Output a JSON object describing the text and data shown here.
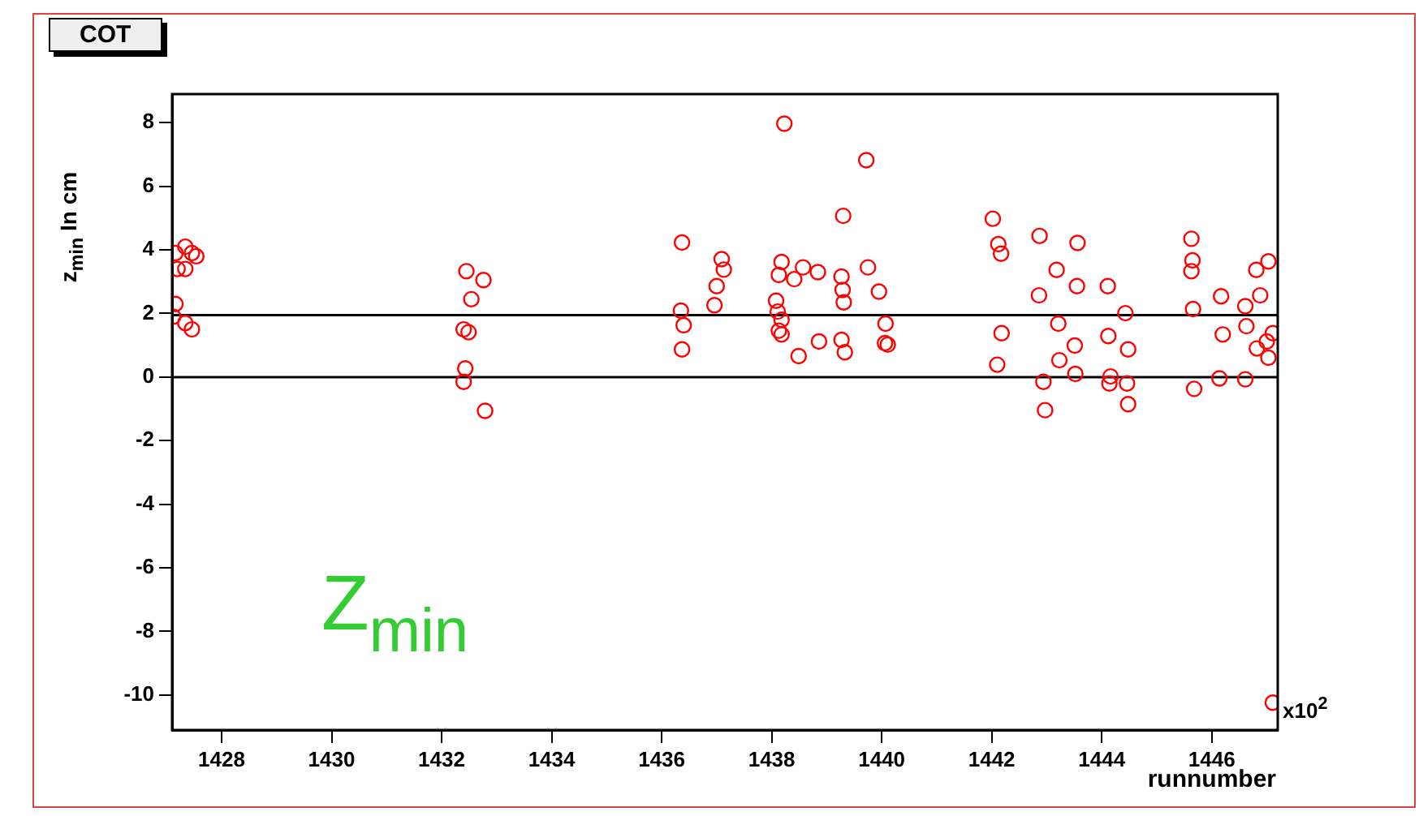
{
  "chart_data": {
    "type": "scatter",
    "title": "COT",
    "xlabel": "runnumber",
    "ylabel": "z$_{min}$ In cm",
    "annotations": [
      "Z$_{min}$",
      "x10$^{2}$"
    ],
    "xlim": [
      1427.1,
      1447.2
    ],
    "xticks": [
      1428,
      1430,
      1432,
      1434,
      1436,
      1438,
      1440,
      1442,
      1444,
      1446
    ],
    "ylim": [
      -11.1,
      8.9
    ],
    "yticks": [
      -10,
      -8,
      -6,
      -4,
      -2,
      0,
      2,
      4,
      6,
      8
    ],
    "grid": false,
    "legend": false,
    "marker": "circle",
    "ref_lines": [
      {
        "axis": "y",
        "value": 0,
        "color": "#000000"
      },
      {
        "axis": "y",
        "value": 1.95,
        "color": "#000000"
      }
    ],
    "series": [
      {
        "color": "#ff0000",
        "x": [
          1427.16,
          1427.34,
          1427.46,
          1427.54,
          1427.2,
          1427.34,
          1427.16,
          1427.12,
          1427.46,
          1427.34,
          1432.45,
          1432.76,
          1432.54,
          1432.4,
          1432.49,
          1432.43,
          1432.4,
          1432.79,
          1436.37,
          1436.35,
          1436.4,
          1436.37,
          1437.09,
          1437.13,
          1437.0,
          1436.96,
          1438.23,
          1438.18,
          1438.13,
          1438.41,
          1438.57,
          1438.84,
          1438.08,
          1438.11,
          1438.18,
          1438.13,
          1438.18,
          1438.49,
          1438.86,
          1439.72,
          1439.3,
          1439.27,
          1439.29,
          1439.31,
          1439.75,
          1439.95,
          1440.07,
          1440.06,
          1439.27,
          1439.33,
          1440.11,
          1442.02,
          1442.12,
          1442.17,
          1442.18,
          1442.1,
          1442.87,
          1443.18,
          1442.86,
          1443.56,
          1443.55,
          1443.21,
          1443.51,
          1443.23,
          1443.52,
          1442.94,
          1442.97,
          1444.11,
          1444.43,
          1444.12,
          1444.48,
          1444.16,
          1444.14,
          1444.46,
          1444.48,
          1445.63,
          1445.65,
          1445.63,
          1445.66,
          1445.68,
          1446.17,
          1446.2,
          1446.14,
          1446.61,
          1446.63,
          1446.61,
          1446.81,
          1447.03,
          1446.88,
          1447.11,
          1446.82,
          1447.03,
          1447.0,
          1447.11
        ],
        "values": [
          3.9,
          4.1,
          3.9,
          3.8,
          3.4,
          3.4,
          2.3,
          1.9,
          1.5,
          1.7,
          3.33,
          3.05,
          2.45,
          1.5,
          1.41,
          0.27,
          -0.15,
          -1.06,
          4.23,
          2.09,
          1.63,
          0.87,
          3.71,
          3.38,
          2.86,
          2.26,
          7.97,
          3.62,
          3.21,
          3.08,
          3.45,
          3.3,
          2.4,
          2.06,
          1.8,
          1.46,
          1.34,
          0.66,
          1.12,
          6.82,
          5.07,
          3.16,
          2.74,
          2.35,
          3.45,
          2.69,
          1.68,
          1.07,
          1.17,
          0.78,
          1.02,
          4.98,
          4.18,
          3.88,
          1.38,
          0.39,
          4.44,
          3.37,
          2.57,
          4.22,
          2.86,
          1.68,
          0.99,
          0.53,
          0.1,
          -0.15,
          -1.04,
          2.86,
          2.01,
          1.29,
          0.87,
          0.02,
          -0.2,
          -0.2,
          -0.85,
          4.35,
          3.67,
          3.33,
          2.14,
          -0.37,
          2.54,
          1.34,
          -0.04,
          2.23,
          1.6,
          -0.07,
          3.37,
          3.64,
          2.57,
          1.38,
          0.9,
          0.61,
          1.12,
          -10.24
        ]
      }
    ]
  }
}
